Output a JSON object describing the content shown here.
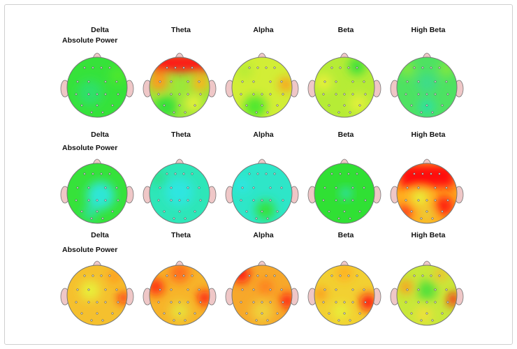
{
  "rows": [
    {
      "subtitle": "Absolute Power",
      "bands": [
        "Delta",
        "Theta",
        "Alpha",
        "Beta",
        "High Beta"
      ]
    },
    {
      "subtitle": "Absolute Power",
      "bands": [
        "Delta",
        "Theta",
        "Alpha",
        "Beta",
        "High Beta"
      ]
    },
    {
      "subtitle": "Absolute Power",
      "bands": [
        "Delta",
        "Theta",
        "Alpha",
        "Beta",
        "High Beta"
      ]
    }
  ],
  "colors": {
    "green": "#2ee02e",
    "cyan": "#2ee6d6",
    "yellow": "#e8f03a",
    "orange": "#ff9a1a",
    "red": "#ff1010",
    "ear": "#efc7c7",
    "outline": "#777777"
  }
}
